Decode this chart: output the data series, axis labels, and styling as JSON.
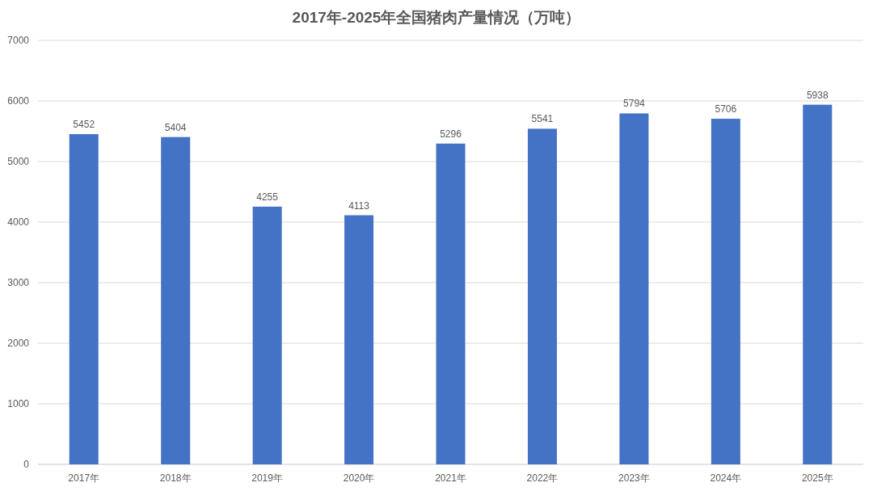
{
  "chart_data": {
    "type": "bar",
    "title": "2017年-2025年全国猪肉产量情况（万吨）",
    "categories": [
      "2017年",
      "2018年",
      "2019年",
      "2020年",
      "2021年",
      "2022年",
      "2023年",
      "2024年",
      "2025年"
    ],
    "values": [
      5452,
      5404,
      4255,
      4113,
      5296,
      5541,
      5794,
      5706,
      5938
    ],
    "color": "#4472c4",
    "ylim": [
      0,
      7000
    ],
    "yticks": [
      0,
      1000,
      2000,
      3000,
      4000,
      5000,
      6000,
      7000
    ],
    "grid": "y",
    "data_labels": true
  }
}
